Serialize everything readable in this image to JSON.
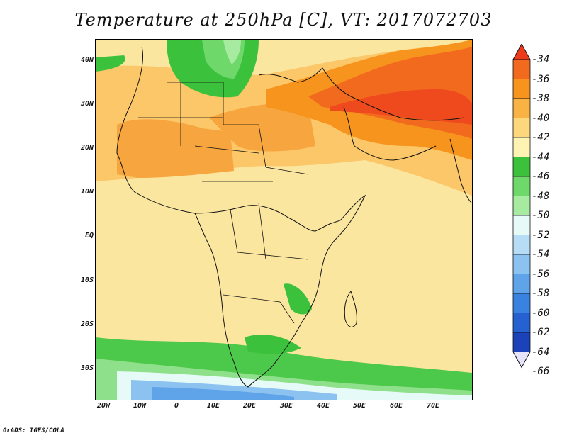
{
  "title": "Temperature at 250hPa [C], VT: 2017072703",
  "credit": "GrADS: IGES/COLA",
  "map": {
    "lat_labels": [
      "40N",
      "30N",
      "20N",
      "10N",
      "EQ",
      "10S",
      "20S",
      "30S"
    ],
    "lon_labels": [
      "20W",
      "10W",
      "0",
      "10E",
      "20E",
      "30E",
      "40E",
      "50E",
      "60E",
      "70E"
    ],
    "extent": {
      "lon": [
        -23,
        80
      ],
      "lat": [
        -36,
        45
      ]
    }
  },
  "colorbar": {
    "labels": [
      "-34",
      "-36",
      "-38",
      "-40",
      "-42",
      "-44",
      "-46",
      "-48",
      "-50",
      "-52",
      "-54",
      "-56",
      "-58",
      "-60",
      "-62",
      "-64",
      "-66"
    ],
    "colors": [
      "#ee3a1c",
      "#f26a1e",
      "#f7941d",
      "#f9b344",
      "#fcd77b",
      "#fef3b3",
      "#3cc13c",
      "#6fd86a",
      "#a6eba0",
      "#e6fbf8",
      "#b7ddf6",
      "#8cc2f0",
      "#5fa3e8",
      "#3a82df",
      "#2561d0",
      "#1b42b8",
      "#0e1d7a"
    ]
  }
}
